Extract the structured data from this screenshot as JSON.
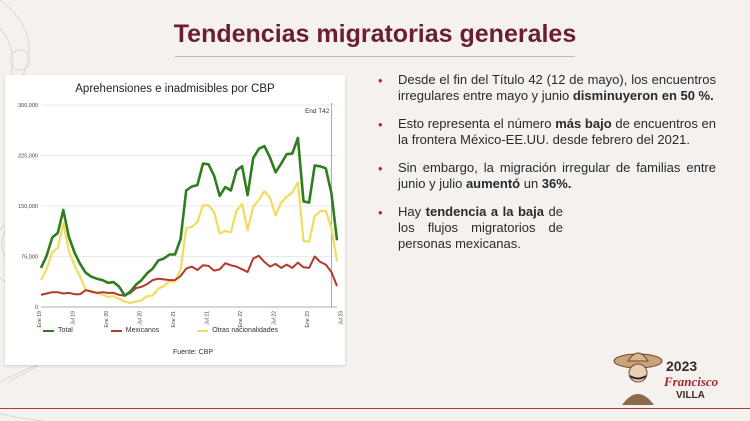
{
  "slide": {
    "title": "Tendencias migratorias generales"
  },
  "colors": {
    "title": "#6b1f2e",
    "total": "#2e7d1f",
    "mexicanos": "#b03a2e",
    "otras": "#f2dc5d",
    "marker": "#d08a8a",
    "bullet": "#b3263b"
  },
  "chart_data": {
    "type": "line",
    "title": "Aprehensiones e inadmisibles por CBP",
    "source": "Fuente: CBP",
    "ylim": [
      0,
      300000
    ],
    "y_ticks": [
      "0",
      "75,000",
      "150,000",
      "225,000",
      "300,000"
    ],
    "y_tick_values": [
      0,
      75000,
      150000,
      225000,
      300000
    ],
    "x_labels": [
      "Ene 19",
      "Jul 19",
      "Ene 20",
      "Jul 20",
      "Ene 21",
      "Jul 21",
      "Ene 22",
      "Jul 22",
      "Ene 23",
      "Jul 23"
    ],
    "x_label_indices": [
      0,
      6,
      12,
      18,
      24,
      30,
      36,
      42,
      48,
      54
    ],
    "grid": true,
    "legend_position": "bottom",
    "annotation": {
      "text": "End T42",
      "index": 52
    },
    "series": [
      {
        "name": "Total",
        "values": [
          58000,
          76000,
          103000,
          110000,
          144000,
          104000,
          81000,
          64000,
          51000,
          45000,
          42000,
          40000,
          36000,
          37000,
          30000,
          17000,
          23000,
          33000,
          40000,
          50000,
          57000,
          69000,
          72000,
          78000,
          78000,
          101000,
          173000,
          179000,
          181000,
          213000,
          212000,
          195000,
          165000,
          178000,
          173000,
          203000,
          209000,
          166000,
          221000,
          235000,
          239000,
          222000,
          200000,
          213000,
          227000,
          228000,
          251000,
          157000,
          155000,
          210000,
          209000,
          206000,
          169000,
          99000
        ]
      },
      {
        "name": "Mexicanos",
        "values": [
          18000,
          20000,
          22000,
          22000,
          20000,
          21000,
          19000,
          19000,
          25000,
          23000,
          21000,
          22000,
          21000,
          21000,
          18000,
          17000,
          21000,
          28000,
          30000,
          34000,
          40000,
          42000,
          41000,
          40000,
          40000,
          46000,
          57000,
          60000,
          55000,
          62000,
          61000,
          54000,
          56000,
          65000,
          62000,
          60000,
          56000,
          52000,
          72000,
          76000,
          67000,
          60000,
          64000,
          58000,
          63000,
          58000,
          66000,
          59000,
          58000,
          75000,
          67000,
          63000,
          52000,
          31000
        ]
      },
      {
        "name": "Otras nacionalidades",
        "values": [
          40000,
          56000,
          81000,
          88000,
          124000,
          83000,
          62000,
          45000,
          26000,
          22000,
          21000,
          18000,
          15000,
          16000,
          12000,
          8000,
          6000,
          8000,
          10000,
          16000,
          17000,
          27000,
          31000,
          38000,
          38000,
          55000,
          117000,
          119000,
          126000,
          151000,
          151000,
          141000,
          109000,
          113000,
          111000,
          143000,
          153000,
          114000,
          149000,
          159000,
          172000,
          162000,
          136000,
          155000,
          164000,
          170000,
          185000,
          98000,
          97000,
          135000,
          142000,
          143000,
          117000,
          68000
        ]
      }
    ]
  },
  "bullets": [
    {
      "plain1": "Desde el fin del Título 42 (12 de mayo), los encuentros irregulares entre mayo y junio ",
      "bold1": "disminuyeron en 50 %.",
      "plain2": ""
    },
    {
      "plain1": "Esto representa el número ",
      "bold1": "más bajo",
      "plain2": " de encuentros en la frontera México-EE.UU. desde febrero del 2021."
    },
    {
      "plain1": "Sin embargo, la migración irregular de familias entre junio y julio ",
      "bold1": "aumentó",
      "plain2": " un ",
      "bold2": "36%."
    },
    {
      "plain1": "Hay ",
      "bold1": "tendencia a la baja",
      "plain2": " de los flujos migratorios de personas mexicanas."
    }
  ],
  "logo": {
    "year": "2023",
    "name": "Francisco",
    "surname": "VILLA"
  }
}
